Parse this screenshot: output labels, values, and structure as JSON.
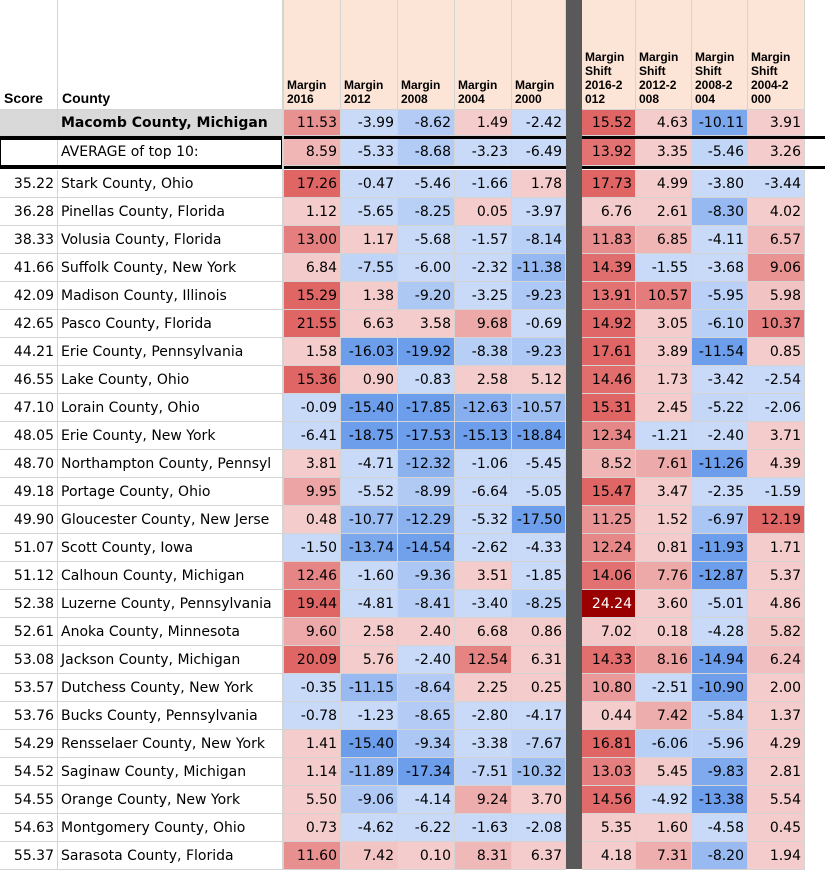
{
  "headers": {
    "score": "Score",
    "county": "County",
    "margin_cols": [
      "Margin 2016",
      "Margin 2012",
      "Margin 2008",
      "Margin 2004",
      "Margin 2000"
    ],
    "shift_cols": [
      "Margin Shift 2016-2 012",
      "Margin Shift 2012-2 008",
      "Margin Shift 2008-2 004",
      "Margin Shift 2004-2 000"
    ]
  },
  "colors": {
    "header_bg": "#fce4d6",
    "highlight_bg": "#d9d9d9",
    "separator": "#595959",
    "red_max": "#e06666",
    "blue_max": "#6d9eeb",
    "dark_red": "#990000"
  },
  "highlight_row": {
    "score": "",
    "county": "Macomb County, Michigan",
    "margins": [
      "11.53",
      "-3.99",
      "-8.62",
      "1.49",
      "-2.42"
    ],
    "shifts": [
      "15.52",
      "4.63",
      "-10.11",
      "3.91"
    ]
  },
  "average_row": {
    "score": "",
    "county": "AVERAGE of top 10:",
    "margins": [
      "8.59",
      "-5.33",
      "-8.68",
      "-3.23",
      "-6.49"
    ],
    "shifts": [
      "13.92",
      "3.35",
      "-5.46",
      "3.26"
    ]
  },
  "rows": [
    {
      "score": "35.22",
      "county": "Stark County, Ohio",
      "margins": [
        "17.26",
        "-0.47",
        "-5.46",
        "-1.66",
        "1.78"
      ],
      "shifts": [
        "17.73",
        "4.99",
        "-3.80",
        "-3.44"
      ]
    },
    {
      "score": "36.28",
      "county": "Pinellas County, Florida",
      "margins": [
        "1.12",
        "-5.65",
        "-8.25",
        "0.05",
        "-3.97"
      ],
      "shifts": [
        "6.76",
        "2.61",
        "-8.30",
        "4.02"
      ]
    },
    {
      "score": "38.33",
      "county": "Volusia County, Florida",
      "margins": [
        "13.00",
        "1.17",
        "-5.68",
        "-1.57",
        "-8.14"
      ],
      "shifts": [
        "11.83",
        "6.85",
        "-4.11",
        "6.57"
      ]
    },
    {
      "score": "41.66",
      "county": "Suffolk County, New York",
      "margins": [
        "6.84",
        "-7.55",
        "-6.00",
        "-2.32",
        "-11.38"
      ],
      "shifts": [
        "14.39",
        "-1.55",
        "-3.68",
        "9.06"
      ]
    },
    {
      "score": "42.09",
      "county": "Madison County, Illinois",
      "margins": [
        "15.29",
        "1.38",
        "-9.20",
        "-3.25",
        "-9.23"
      ],
      "shifts": [
        "13.91",
        "10.57",
        "-5.95",
        "5.98"
      ]
    },
    {
      "score": "42.65",
      "county": "Pasco County, Florida",
      "margins": [
        "21.55",
        "6.63",
        "3.58",
        "9.68",
        "-0.69"
      ],
      "shifts": [
        "14.92",
        "3.05",
        "-6.10",
        "10.37"
      ]
    },
    {
      "score": "44.21",
      "county": "Erie County, Pennsylvania",
      "margins": [
        "1.58",
        "-16.03",
        "-19.92",
        "-8.38",
        "-9.23"
      ],
      "shifts": [
        "17.61",
        "3.89",
        "-11.54",
        "0.85"
      ]
    },
    {
      "score": "46.55",
      "county": "Lake County, Ohio",
      "margins": [
        "15.36",
        "0.90",
        "-0.83",
        "2.58",
        "5.12"
      ],
      "shifts": [
        "14.46",
        "1.73",
        "-3.42",
        "-2.54"
      ]
    },
    {
      "score": "47.10",
      "county": "Lorain County, Ohio",
      "margins": [
        "-0.09",
        "-15.40",
        "-17.85",
        "-12.63",
        "-10.57"
      ],
      "shifts": [
        "15.31",
        "2.45",
        "-5.22",
        "-2.06"
      ]
    },
    {
      "score": "48.05",
      "county": "Erie County, New York",
      "margins": [
        "-6.41",
        "-18.75",
        "-17.53",
        "-15.13",
        "-18.84"
      ],
      "shifts": [
        "12.34",
        "-1.21",
        "-2.40",
        "3.71"
      ]
    },
    {
      "score": "48.70",
      "county": "Northampton County, Pennsyl",
      "margins": [
        "3.81",
        "-4.71",
        "-12.32",
        "-1.06",
        "-5.45"
      ],
      "shifts": [
        "8.52",
        "7.61",
        "-11.26",
        "4.39"
      ]
    },
    {
      "score": "49.18",
      "county": "Portage County, Ohio",
      "margins": [
        "9.95",
        "-5.52",
        "-8.99",
        "-6.64",
        "-5.05"
      ],
      "shifts": [
        "15.47",
        "3.47",
        "-2.35",
        "-1.59"
      ]
    },
    {
      "score": "49.90",
      "county": "Gloucester County, New Jerse",
      "margins": [
        "0.48",
        "-10.77",
        "-12.29",
        "-5.32",
        "-17.50"
      ],
      "shifts": [
        "11.25",
        "1.52",
        "-6.97",
        "12.19"
      ]
    },
    {
      "score": "51.07",
      "county": "Scott County, Iowa",
      "margins": [
        "-1.50",
        "-13.74",
        "-14.54",
        "-2.62",
        "-4.33"
      ],
      "shifts": [
        "12.24",
        "0.81",
        "-11.93",
        "1.71"
      ]
    },
    {
      "score": "51.12",
      "county": "Calhoun County, Michigan",
      "margins": [
        "12.46",
        "-1.60",
        "-9.36",
        "3.51",
        "-1.85"
      ],
      "shifts": [
        "14.06",
        "7.76",
        "-12.87",
        "5.37"
      ]
    },
    {
      "score": "52.38",
      "county": "Luzerne County, Pennsylvania",
      "margins": [
        "19.44",
        "-4.81",
        "-8.41",
        "-3.40",
        "-8.25"
      ],
      "shifts": [
        "24.24",
        "3.60",
        "-5.01",
        "4.86"
      ]
    },
    {
      "score": "52.61",
      "county": "Anoka County, Minnesota",
      "margins": [
        "9.60",
        "2.58",
        "2.40",
        "6.68",
        "0.86"
      ],
      "shifts": [
        "7.02",
        "0.18",
        "-4.28",
        "5.82"
      ]
    },
    {
      "score": "53.08",
      "county": "Jackson County, Michigan",
      "margins": [
        "20.09",
        "5.76",
        "-2.40",
        "12.54",
        "6.31"
      ],
      "shifts": [
        "14.33",
        "8.16",
        "-14.94",
        "6.24"
      ]
    },
    {
      "score": "53.57",
      "county": "Dutchess County, New York",
      "margins": [
        "-0.35",
        "-11.15",
        "-8.64",
        "2.25",
        "0.25"
      ],
      "shifts": [
        "10.80",
        "-2.51",
        "-10.90",
        "2.00"
      ]
    },
    {
      "score": "53.76",
      "county": "Bucks County, Pennsylvania",
      "margins": [
        "-0.78",
        "-1.23",
        "-8.65",
        "-2.80",
        "-4.17"
      ],
      "shifts": [
        "0.44",
        "7.42",
        "-5.84",
        "1.37"
      ]
    },
    {
      "score": "54.29",
      "county": "Rensselaer County, New York",
      "margins": [
        "1.41",
        "-15.40",
        "-9.34",
        "-3.38",
        "-7.67"
      ],
      "shifts": [
        "16.81",
        "-6.06",
        "-5.96",
        "4.29"
      ]
    },
    {
      "score": "54.52",
      "county": "Saginaw County, Michigan",
      "margins": [
        "1.14",
        "-11.89",
        "-17.34",
        "-7.51",
        "-10.32"
      ],
      "shifts": [
        "13.03",
        "5.45",
        "-9.83",
        "2.81"
      ]
    },
    {
      "score": "54.55",
      "county": "Orange County, New York",
      "margins": [
        "5.50",
        "-9.06",
        "-4.14",
        "9.24",
        "3.70"
      ],
      "shifts": [
        "14.56",
        "-4.92",
        "-13.38",
        "5.54"
      ]
    },
    {
      "score": "54.63",
      "county": "Montgomery County, Ohio",
      "margins": [
        "0.73",
        "-4.62",
        "-6.22",
        "-1.63",
        "-2.08"
      ],
      "shifts": [
        "5.35",
        "1.60",
        "-4.58",
        "0.45"
      ]
    },
    {
      "score": "55.37",
      "county": "Sarasota County, Florida",
      "margins": [
        "11.60",
        "7.42",
        "0.10",
        "8.31",
        "6.37"
      ],
      "shifts": [
        "4.18",
        "7.31",
        "-8.20",
        "1.94"
      ]
    }
  ]
}
